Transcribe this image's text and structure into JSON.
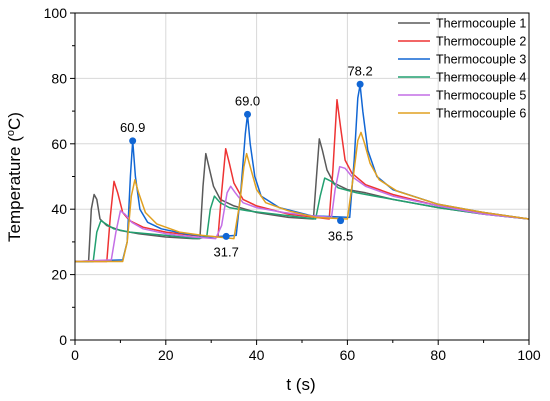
{
  "chart_data": {
    "type": "line",
    "xlabel": "t (s)",
    "ylabel_main": "Temperature (",
    "ylabel_sup": "o",
    "ylabel_end": "C)",
    "xlim": [
      0,
      100
    ],
    "ylim": [
      0,
      100
    ],
    "x_ticks": [
      0,
      20,
      40,
      60,
      80,
      100
    ],
    "y_ticks": [
      0,
      20,
      40,
      60,
      80,
      100
    ],
    "grid": true,
    "legend_position": "top-right",
    "series": [
      {
        "name": "Thermocouple 1",
        "color": "#5a5a5a",
        "points": [
          [
            0,
            24
          ],
          [
            3,
            24
          ],
          [
            3.6,
            40
          ],
          [
            4.2,
            44.5
          ],
          [
            4.8,
            43
          ],
          [
            5.5,
            37
          ],
          [
            7,
            35
          ],
          [
            10,
            33.5
          ],
          [
            14,
            32.5
          ],
          [
            20,
            31.5
          ],
          [
            26,
            31
          ],
          [
            27.5,
            31
          ],
          [
            28.2,
            47
          ],
          [
            28.8,
            57
          ],
          [
            29.5,
            53
          ],
          [
            30.5,
            47
          ],
          [
            32,
            43
          ],
          [
            35,
            41
          ],
          [
            40,
            39
          ],
          [
            47,
            37.5
          ],
          [
            52.5,
            37
          ],
          [
            53.2,
            50
          ],
          [
            53.8,
            61.5
          ],
          [
            54.5,
            58
          ],
          [
            55.5,
            52
          ],
          [
            57,
            48
          ],
          [
            60,
            46
          ],
          [
            64,
            45
          ],
          [
            70,
            43
          ],
          [
            80,
            40.5
          ],
          [
            90,
            38.5
          ],
          [
            100,
            37
          ]
        ]
      },
      {
        "name": "Thermocouple 2",
        "color": "#ee3333",
        "points": [
          [
            0,
            24
          ],
          [
            7,
            24
          ],
          [
            7.8,
            38
          ],
          [
            8.6,
            48.5
          ],
          [
            9.4,
            45
          ],
          [
            10.5,
            39
          ],
          [
            12,
            36.5
          ],
          [
            15,
            34.5
          ],
          [
            20,
            33
          ],
          [
            26,
            32
          ],
          [
            31.5,
            31.5
          ],
          [
            32.3,
            45
          ],
          [
            33.2,
            58.5
          ],
          [
            34,
            54
          ],
          [
            35,
            48
          ],
          [
            37,
            43
          ],
          [
            40,
            41
          ],
          [
            47,
            38.5
          ],
          [
            56,
            37
          ],
          [
            56.8,
            52
          ],
          [
            57.7,
            73.5
          ],
          [
            58.5,
            65
          ],
          [
            59.5,
            55
          ],
          [
            61,
            51
          ],
          [
            64,
            47.5
          ],
          [
            70,
            44.5
          ],
          [
            80,
            41
          ],
          [
            90,
            39
          ],
          [
            100,
            37
          ]
        ]
      },
      {
        "name": "Thermocouple 3",
        "color": "#1166d4",
        "points": [
          [
            0,
            24
          ],
          [
            10.5,
            24.5
          ],
          [
            11.5,
            30
          ],
          [
            12.2,
            50
          ],
          [
            12.7,
            61
          ],
          [
            13.3,
            50
          ],
          [
            14.3,
            40
          ],
          [
            16,
            36
          ],
          [
            19,
            34
          ],
          [
            24,
            32.5
          ],
          [
            30,
            31.5
          ],
          [
            35.5,
            32
          ],
          [
            36.5,
            45
          ],
          [
            37.5,
            63
          ],
          [
            38,
            69
          ],
          [
            38.6,
            60
          ],
          [
            39.6,
            50
          ],
          [
            41,
            44
          ],
          [
            45,
            40.5
          ],
          [
            52,
            38
          ],
          [
            60.5,
            37.5
          ],
          [
            61.5,
            55
          ],
          [
            62.3,
            74
          ],
          [
            62.8,
            78
          ],
          [
            63.4,
            70
          ],
          [
            64.5,
            58
          ],
          [
            66.5,
            50
          ],
          [
            70,
            46
          ],
          [
            80,
            41.5
          ],
          [
            90,
            39
          ],
          [
            100,
            37
          ]
        ]
      },
      {
        "name": "Thermocouple 4",
        "color": "#22a070",
        "points": [
          [
            0,
            24
          ],
          [
            4,
            24
          ],
          [
            4.8,
            33
          ],
          [
            5.7,
            36.5
          ],
          [
            6.8,
            35.5
          ],
          [
            8.5,
            34
          ],
          [
            12,
            33
          ],
          [
            16,
            32.5
          ],
          [
            20,
            32
          ],
          [
            27,
            31
          ],
          [
            29,
            31.5
          ],
          [
            29.8,
            40
          ],
          [
            30.7,
            44
          ],
          [
            32,
            42
          ],
          [
            34,
            40.5
          ],
          [
            38,
            39.5
          ],
          [
            44,
            38.5
          ],
          [
            53,
            37
          ],
          [
            54,
            44
          ],
          [
            55,
            49.5
          ],
          [
            56.5,
            48.5
          ],
          [
            58,
            46.5
          ],
          [
            62,
            45
          ],
          [
            66,
            44
          ],
          [
            70,
            43
          ],
          [
            80,
            40.5
          ],
          [
            90,
            38.5
          ],
          [
            100,
            37
          ]
        ]
      },
      {
        "name": "Thermocouple 5",
        "color": "#c46ee6",
        "points": [
          [
            0,
            24
          ],
          [
            8,
            24.5
          ],
          [
            9,
            33
          ],
          [
            10,
            39.5
          ],
          [
            11,
            38.5
          ],
          [
            12.5,
            36
          ],
          [
            15,
            34
          ],
          [
            20,
            32.5
          ],
          [
            26,
            31.5
          ],
          [
            31,
            31
          ],
          [
            32.3,
            35
          ],
          [
            33.5,
            45
          ],
          [
            34.3,
            47
          ],
          [
            35.3,
            45
          ],
          [
            37,
            42
          ],
          [
            40,
            40.5
          ],
          [
            46,
            39
          ],
          [
            52,
            38
          ],
          [
            56.5,
            37.5
          ],
          [
            57.3,
            46
          ],
          [
            58.3,
            53
          ],
          [
            59.5,
            52.5
          ],
          [
            61,
            50
          ],
          [
            64,
            47
          ],
          [
            70,
            44
          ],
          [
            80,
            41
          ],
          [
            90,
            38.5
          ],
          [
            100,
            37
          ]
        ]
      },
      {
        "name": "Thermocouple 6",
        "color": "#e0a020",
        "points": [
          [
            0,
            24
          ],
          [
            10.5,
            24
          ],
          [
            11.5,
            30
          ],
          [
            12.4,
            44
          ],
          [
            13.2,
            49
          ],
          [
            14,
            45
          ],
          [
            15.5,
            39
          ],
          [
            18,
            35.5
          ],
          [
            23,
            33
          ],
          [
            28,
            32
          ],
          [
            35,
            31
          ],
          [
            36.3,
            42
          ],
          [
            37.2,
            53
          ],
          [
            37.8,
            57
          ],
          [
            38.6,
            53
          ],
          [
            40,
            46
          ],
          [
            42,
            42
          ],
          [
            47,
            39.5
          ],
          [
            53,
            37.5
          ],
          [
            60,
            37
          ],
          [
            61.3,
            50
          ],
          [
            62.3,
            61
          ],
          [
            63,
            63.5
          ],
          [
            63.8,
            60
          ],
          [
            65,
            54
          ],
          [
            67,
            49
          ],
          [
            71,
            45.5
          ],
          [
            80,
            41.5
          ],
          [
            90,
            39
          ],
          [
            100,
            37
          ]
        ]
      }
    ],
    "annotations": [
      {
        "x": 12.7,
        "y": 60.9,
        "label": "60.9",
        "position": "above"
      },
      {
        "x": 38,
        "y": 69.0,
        "label": "69.0",
        "position": "above"
      },
      {
        "x": 62.8,
        "y": 78.2,
        "label": "78.2",
        "position": "above"
      },
      {
        "x": 33.3,
        "y": 31.7,
        "label": "31.7",
        "position": "below"
      },
      {
        "x": 58.5,
        "y": 36.5,
        "label": "36.5",
        "position": "below"
      }
    ],
    "marker_color": "#1166d4"
  }
}
